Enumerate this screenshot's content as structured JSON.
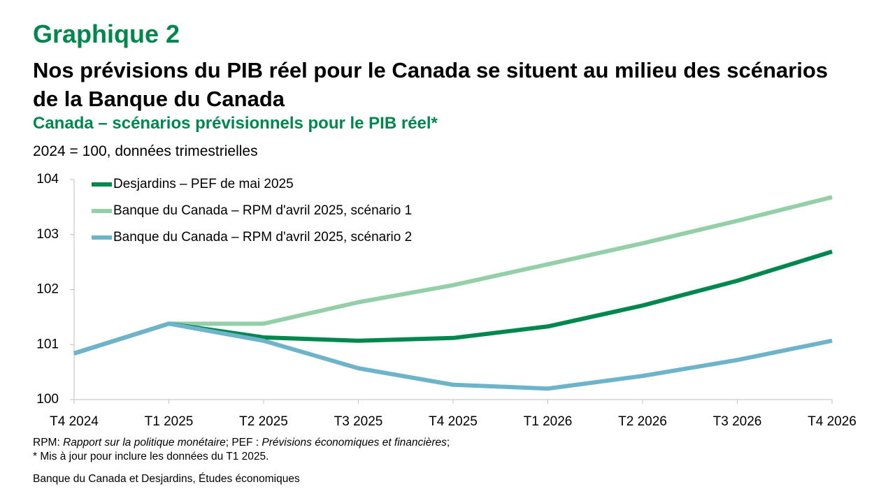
{
  "chart_data": {
    "type": "line",
    "label": "Graphique 2",
    "title": "Nos prévisions du PIB réel pour le Canada se situent au milieu des scénarios de la Banque du Canada",
    "subtitle": "Canada – scénarios prévisionnels pour le PIB réel*",
    "y_label": "2024 = 100, données trimestrielles",
    "categories": [
      "T4 2024",
      "T1 2025",
      "T2 2025",
      "T3 2025",
      "T4 2025",
      "T1 2026",
      "T2 2026",
      "T3 2026",
      "T4 2026"
    ],
    "series": [
      {
        "name": "Desjardins – PEF de mai 2025",
        "color": "#00874e",
        "values": [
          100.84,
          101.38,
          101.13,
          101.07,
          101.12,
          101.33,
          101.71,
          102.16,
          102.69
        ]
      },
      {
        "name": "Banque du Canada – RPM d'avril 2025, scénario 1",
        "color": "#93cfa9",
        "values": [
          100.84,
          101.38,
          101.38,
          101.77,
          102.08,
          102.46,
          102.84,
          103.25,
          103.68
        ]
      },
      {
        "name": "Banque du Canada – RPM d'avril 2025, scénario 2",
        "color": "#6db3c9",
        "values": [
          100.84,
          101.38,
          101.07,
          100.57,
          100.27,
          100.2,
          100.43,
          100.72,
          101.07
        ]
      }
    ],
    "ylim": [
      100,
      104
    ],
    "yticks": [
      100,
      101,
      102,
      103,
      104
    ],
    "legend": "top-left",
    "notes": {
      "parts": [
        "RPM: ",
        "Rapport sur la politique monétaire",
        "; PEF : ",
        "Prévisions économiques et financières",
        ";"
      ],
      "asterisk": "* Mis à jour pour inclure les données du T1 2025.",
      "source": "Banque du Canada et Desjardins, Études économiques"
    }
  }
}
